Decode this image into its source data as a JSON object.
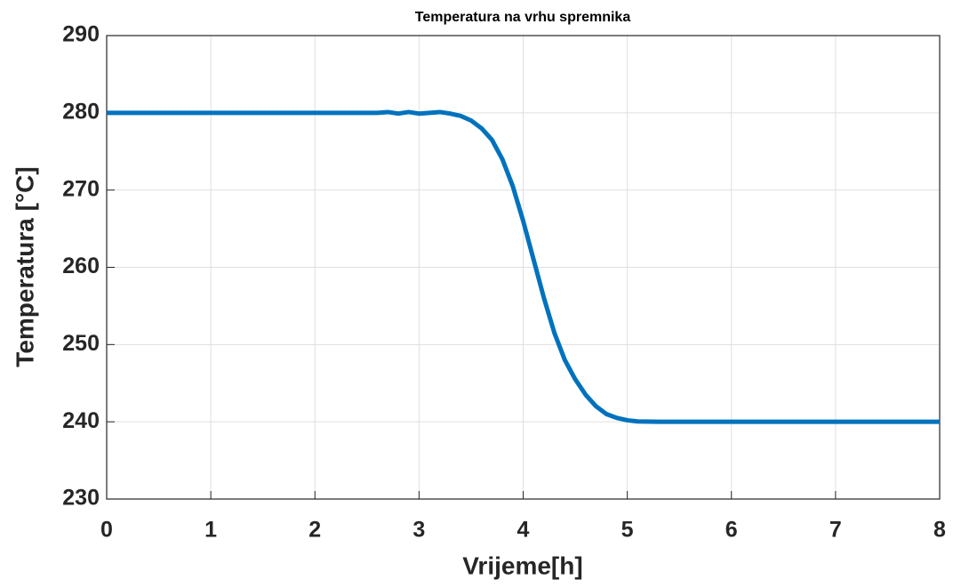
{
  "chart_data": {
    "type": "line",
    "title": "Temperatura na vrhu spremnika",
    "xlabel": "Vrijeme[h]",
    "ylabel": "Temperatura [°C]",
    "x": [
      0,
      0.5,
      1,
      1.5,
      2,
      2.5,
      2.6,
      2.7,
      2.8,
      2.9,
      3.0,
      3.1,
      3.2,
      3.3,
      3.4,
      3.5,
      3.6,
      3.7,
      3.8,
      3.9,
      4.0,
      4.1,
      4.2,
      4.3,
      4.4,
      4.5,
      4.6,
      4.7,
      4.8,
      4.9,
      5.0,
      5.1,
      5.3,
      6,
      7,
      8
    ],
    "values": [
      280,
      280,
      280,
      280,
      280,
      280,
      280,
      280.1,
      279.9,
      280.1,
      279.9,
      280,
      280.1,
      279.9,
      279.6,
      279,
      278,
      276.5,
      274,
      270.5,
      266,
      261,
      256,
      251.5,
      248,
      245.5,
      243.5,
      242,
      241,
      240.5,
      240.2,
      240.05,
      240,
      240,
      240,
      240
    ],
    "color": "#0072bd",
    "xlim": [
      0,
      8
    ],
    "xticks": [
      0,
      1,
      2,
      3,
      4,
      5,
      6,
      7,
      8
    ],
    "ylim": [
      230,
      290
    ],
    "yticks": [
      230,
      240,
      250,
      260,
      270,
      280,
      290
    ],
    "grid": true
  }
}
